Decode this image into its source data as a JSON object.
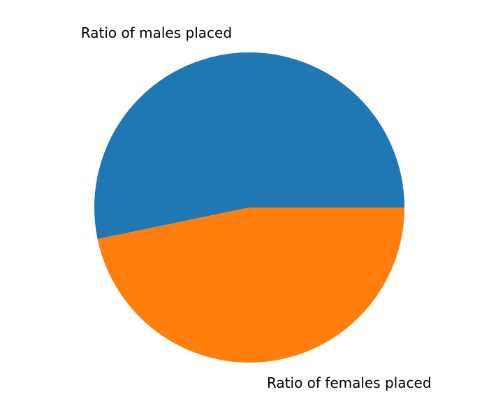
{
  "chart_data": {
    "type": "pie",
    "title": "",
    "labels": [
      "Ratio of males placed",
      "Ratio of females placed"
    ],
    "values": [
      0.5326,
      0.4674
    ],
    "colors": [
      "#1f77b4",
      "#ff7f0e"
    ],
    "start_angle": 0,
    "direction": "counterclockwise"
  }
}
